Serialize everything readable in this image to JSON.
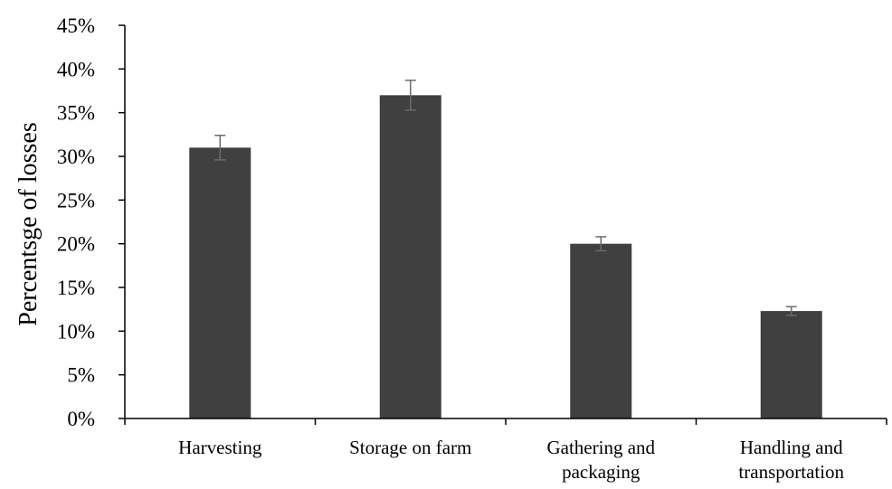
{
  "chart_data": {
    "type": "bar",
    "title": "",
    "xlabel": "",
    "ylabel": "Percentsge of losses",
    "categories": [
      [
        "Harvesting"
      ],
      [
        "Storage on farm"
      ],
      [
        "Gathering and",
        "packaging"
      ],
      [
        "Handling and",
        "transportation"
      ]
    ],
    "values": [
      0.31,
      0.37,
      0.2,
      0.123
    ],
    "error": [
      0.014,
      0.017,
      0.008,
      0.005
    ],
    "ylim": [
      0,
      0.45
    ],
    "yticks": [
      0,
      0.05,
      0.1,
      0.15,
      0.2,
      0.25,
      0.3,
      0.35,
      0.4,
      0.45
    ],
    "ytick_labels": [
      "0%",
      "5%",
      "10%",
      "15%",
      "20%",
      "25%",
      "30%",
      "35%",
      "40%",
      "45%"
    ],
    "grid": false,
    "legend": "none",
    "colors": {
      "bar": "#404040",
      "error_bar": "#6b6b6b",
      "axis": "#000000"
    }
  }
}
